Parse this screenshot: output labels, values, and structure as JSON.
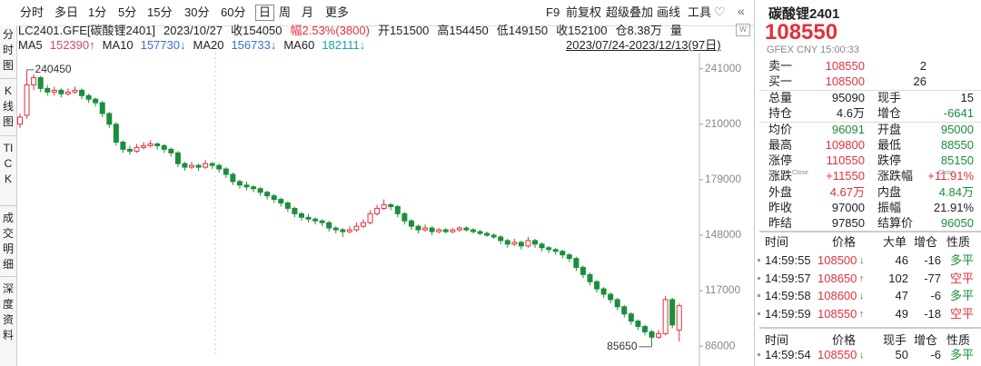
{
  "toolbar": {
    "periods": [
      "分时",
      "多日",
      "1分",
      "5分",
      "15分",
      "30分",
      "60分",
      "日",
      "周",
      "月",
      "更多"
    ],
    "tools": [
      "F9",
      "前复权",
      "超级叠加",
      "画线",
      "工具"
    ]
  },
  "side_tabs": [
    "分时图",
    "K线图",
    "TICK",
    "成交明细",
    "深度资料"
  ],
  "info": {
    "symbol": "LC2401.GFE[碳酸锂2401]",
    "date": "2023/10/27",
    "fields": [
      "收154050",
      "幅2.53%(3800)",
      "开151500",
      "高154450",
      "低149150",
      "收152100",
      "仓8.38万",
      "量"
    ]
  },
  "ma": [
    {
      "label": "MA5",
      "value": "152390↑"
    },
    {
      "label": "MA10",
      "value": "157730↓"
    },
    {
      "label": "MA20",
      "value": "156733↓"
    },
    {
      "label": "MA60",
      "value": "182111↓"
    }
  ],
  "range": "2023/07/24-2023/12/13(97日)",
  "chart_data": {
    "type": "candlestick",
    "up_color": "#e0323c",
    "down_color": "#1a8f3a",
    "ylim": [
      81500,
      250000
    ],
    "yticks": [
      86000,
      117000,
      148000,
      179000,
      210000,
      241000
    ],
    "max_label": 240450,
    "min_label": 85650,
    "candles": [
      [
        210000,
        216000,
        208000,
        214000
      ],
      [
        215000,
        240450,
        213000,
        232000
      ],
      [
        232000,
        238000,
        229000,
        236000
      ],
      [
        236000,
        237000,
        228000,
        230000
      ],
      [
        230000,
        232000,
        226000,
        228000
      ],
      [
        228000,
        231000,
        226000,
        229000
      ],
      [
        229000,
        230000,
        225000,
        227000
      ],
      [
        227000,
        230000,
        226000,
        228000
      ],
      [
        228000,
        231000,
        227000,
        229000
      ],
      [
        229000,
        230000,
        224000,
        226000
      ],
      [
        226000,
        227000,
        222000,
        224000
      ],
      [
        224000,
        225000,
        220000,
        222000
      ],
      [
        222000,
        223000,
        214000,
        216000
      ],
      [
        216000,
        217000,
        208000,
        210000
      ],
      [
        210000,
        211000,
        198000,
        200000
      ],
      [
        200000,
        201000,
        194000,
        196000
      ],
      [
        196000,
        198000,
        193000,
        195000
      ],
      [
        195000,
        199000,
        194000,
        197000
      ],
      [
        197000,
        200000,
        196000,
        198000
      ],
      [
        198000,
        201000,
        197000,
        199000
      ],
      [
        199000,
        200000,
        196000,
        198000
      ],
      [
        198000,
        199000,
        194000,
        196000
      ],
      [
        196000,
        197000,
        192000,
        194000
      ],
      [
        194000,
        195000,
        186000,
        188000
      ],
      [
        188000,
        189000,
        184000,
        186000
      ],
      [
        186000,
        189000,
        185000,
        187000
      ],
      [
        187000,
        188000,
        184000,
        186000
      ],
      [
        186000,
        190000,
        185000,
        188000
      ],
      [
        188000,
        189000,
        185000,
        187000
      ],
      [
        187000,
        188000,
        183000,
        185000
      ],
      [
        185000,
        186000,
        180000,
        182000
      ],
      [
        182000,
        183000,
        176000,
        178000
      ],
      [
        178000,
        179000,
        174000,
        176000
      ],
      [
        176000,
        178000,
        173000,
        175000
      ],
      [
        175000,
        176000,
        172000,
        174000
      ],
      [
        174000,
        175000,
        170000,
        172000
      ],
      [
        172000,
        173000,
        168000,
        170000
      ],
      [
        170000,
        171000,
        166000,
        168000
      ],
      [
        168000,
        169000,
        164000,
        166000
      ],
      [
        166000,
        167000,
        161000,
        163000
      ],
      [
        163000,
        164000,
        158000,
        160000
      ],
      [
        160000,
        161000,
        156000,
        158000
      ],
      [
        158000,
        160000,
        155000,
        157000
      ],
      [
        157000,
        158000,
        154000,
        156000
      ],
      [
        156000,
        157000,
        153000,
        155000
      ],
      [
        155000,
        156000,
        150000,
        152000
      ],
      [
        152000,
        153000,
        149000,
        151000
      ],
      [
        151000,
        152000,
        147000,
        150000
      ],
      [
        150000,
        153000,
        149000,
        151000
      ],
      [
        151000,
        155000,
        150000,
        153000
      ],
      [
        153000,
        157000,
        152000,
        155000
      ],
      [
        155000,
        162000,
        154000,
        160000
      ],
      [
        160000,
        165000,
        159000,
        163000
      ],
      [
        163000,
        168000,
        162000,
        165000
      ],
      [
        165000,
        166000,
        162000,
        164000
      ],
      [
        164000,
        165000,
        158000,
        160000
      ],
      [
        160000,
        161000,
        154000,
        156000
      ],
      [
        156000,
        157000,
        151000,
        153000
      ],
      [
        153000,
        154000,
        149000,
        151000
      ],
      [
        151000,
        154000,
        150000,
        152000
      ],
      [
        152000,
        153000,
        148000,
        150000
      ],
      [
        150000,
        152000,
        149000,
        151000
      ],
      [
        151000,
        152000,
        149000,
        150000
      ],
      [
        150000,
        152000,
        149000,
        151000
      ],
      [
        151000,
        153000,
        150000,
        152000
      ],
      [
        152000,
        153000,
        150000,
        151000
      ],
      [
        151000,
        152000,
        149000,
        150000
      ],
      [
        150000,
        151000,
        148000,
        149000
      ],
      [
        149000,
        150000,
        147000,
        148000
      ],
      [
        148000,
        149000,
        146000,
        147000
      ],
      [
        147000,
        148000,
        143000,
        145000
      ],
      [
        145000,
        146000,
        141000,
        143000
      ],
      [
        143000,
        146000,
        142000,
        144000
      ],
      [
        144000,
        145000,
        140000,
        142000
      ],
      [
        142000,
        147000,
        141000,
        145000
      ],
      [
        145000,
        146000,
        141000,
        143000
      ],
      [
        143000,
        144000,
        139000,
        141000
      ],
      [
        141000,
        142000,
        138000,
        140000
      ],
      [
        140000,
        141000,
        137000,
        139000
      ],
      [
        139000,
        140000,
        135000,
        137000
      ],
      [
        137000,
        138000,
        133000,
        135000
      ],
      [
        135000,
        136000,
        128000,
        130000
      ],
      [
        130000,
        131000,
        124000,
        126000
      ],
      [
        126000,
        127000,
        120000,
        122000
      ],
      [
        122000,
        123000,
        116000,
        118000
      ],
      [
        118000,
        119000,
        113000,
        115000
      ],
      [
        115000,
        116000,
        110000,
        112000
      ],
      [
        112000,
        113000,
        106000,
        108000
      ],
      [
        108000,
        109000,
        102000,
        104000
      ],
      [
        104000,
        105000,
        98000,
        100000
      ],
      [
        100000,
        101000,
        95000,
        97000
      ],
      [
        97000,
        98000,
        92000,
        94000
      ],
      [
        94000,
        95000,
        85650,
        91000
      ],
      [
        91000,
        95000,
        90000,
        93000
      ],
      [
        93000,
        114000,
        92000,
        112000
      ],
      [
        112000,
        113000,
        96000,
        97850
      ],
      [
        95000,
        109800,
        88550,
        108550
      ]
    ]
  },
  "quote": {
    "name": "碳酸锂2401",
    "price": "108550",
    "sub": "GFEX  CNY  15:00:33",
    "close_tag": "Close",
    "rows": [
      [
        "卖一",
        "108550",
        "2",
        ""
      ],
      [
        "买一",
        "108500",
        "26",
        ""
      ],
      [
        "总量",
        "95090",
        "现手",
        "15"
      ],
      [
        "持仓",
        "4.6万",
        "增仓",
        "-6641"
      ],
      [
        "均价",
        "96091",
        "开盘",
        "95000"
      ],
      [
        "最高",
        "109800",
        "最低",
        "88550"
      ],
      [
        "涨停",
        "110550",
        "跌停",
        "85150"
      ],
      [
        "涨跌",
        "+11550",
        "涨跌幅",
        "+11.91%"
      ],
      [
        "外盘",
        "4.67万",
        "内盘",
        "4.84万"
      ],
      [
        "昨收",
        "97000",
        "振幅",
        "21.91%"
      ],
      [
        "昨结",
        "97850",
        "结算价",
        "96050"
      ]
    ]
  },
  "trades": {
    "header": [
      "时间",
      "价格",
      "大单",
      "增仓",
      "性质"
    ],
    "rows": [
      [
        "14:59:55",
        "108500",
        "↓",
        "46",
        "-16",
        "多平"
      ],
      [
        "14:59:57",
        "108650",
        "↑",
        "102",
        "-77",
        "空平"
      ],
      [
        "14:59:58",
        "108600",
        "↓",
        "47",
        "-6",
        "多平"
      ],
      [
        "14:59:59",
        "108550",
        "↑",
        "49",
        "-18",
        "空平"
      ]
    ]
  },
  "ticks": {
    "header": [
      "时间",
      "价格",
      "现手",
      "增仓",
      "性质"
    ],
    "rows": [
      [
        "14:59:54",
        "108550",
        "↓",
        "50",
        "-6",
        "多平"
      ]
    ]
  }
}
